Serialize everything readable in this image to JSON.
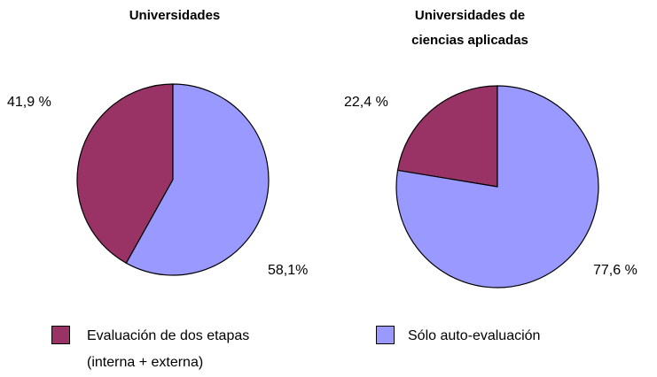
{
  "legend": [
    {
      "name": "Evaluación de dos etapas (interna + externa)",
      "color": "#993366"
    },
    {
      "name": "Sólo auto-evaluación",
      "color": "#9999ff"
    }
  ],
  "chart_data": [
    {
      "type": "pie",
      "title": "Universidades",
      "values": [
        41.9,
        58.1
      ],
      "value_labels": [
        "41,9 %",
        "58,1%"
      ]
    },
    {
      "type": "pie",
      "title": "Universidades de ciencias aplicadas",
      "values": [
        22.4,
        77.6
      ],
      "value_labels": [
        "22,4 %",
        "77,6 %"
      ]
    }
  ]
}
